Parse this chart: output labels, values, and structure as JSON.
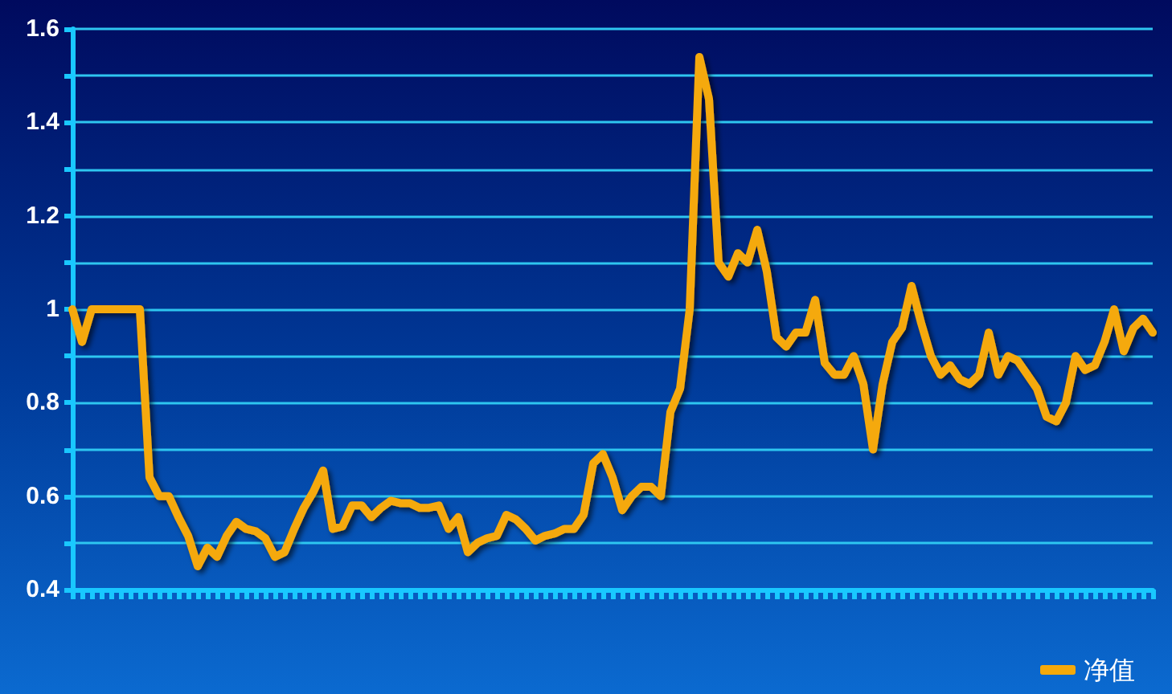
{
  "chart_data": {
    "type": "line",
    "categories": [
      null,
      null,
      null,
      null,
      null,
      null,
      null,
      null,
      null,
      null,
      null,
      null,
      null,
      null,
      null,
      null,
      null,
      null,
      null,
      null,
      null,
      null,
      null,
      null,
      null,
      null,
      null,
      null,
      null,
      null,
      null,
      null,
      null,
      null,
      null,
      null,
      null,
      null,
      null,
      null,
      null,
      null,
      null,
      null,
      null,
      null,
      null,
      null,
      null,
      null,
      null,
      null,
      null,
      null,
      null,
      null,
      null,
      null,
      null,
      null,
      null,
      null,
      null,
      null,
      null,
      null,
      null,
      null,
      null,
      null,
      null,
      null,
      null,
      null,
      null,
      null,
      null,
      null,
      null,
      null,
      null,
      null,
      null,
      null,
      null,
      null,
      null,
      null,
      null,
      null,
      null,
      null,
      null,
      null,
      null,
      null,
      null,
      null,
      null,
      null,
      null,
      null,
      null,
      null,
      null,
      null,
      null,
      null,
      null,
      null,
      null,
      null,
      null
    ],
    "series": [
      {
        "name": "净值",
        "color": "#f5a90a",
        "values": [
          1.0,
          0.93,
          1.0,
          1.0,
          1.0,
          1.0,
          1.0,
          1.0,
          0.64,
          0.6,
          0.6,
          0.555,
          0.515,
          0.45,
          0.49,
          0.47,
          0.515,
          0.545,
          0.53,
          0.525,
          0.51,
          0.47,
          0.48,
          0.53,
          0.575,
          0.61,
          0.655,
          0.53,
          0.535,
          0.58,
          0.58,
          0.555,
          0.575,
          0.59,
          0.585,
          0.585,
          0.575,
          0.575,
          0.58,
          0.53,
          0.555,
          0.48,
          0.5,
          0.51,
          0.515,
          0.56,
          0.55,
          0.53,
          0.505,
          0.515,
          0.52,
          0.53,
          0.53,
          0.56,
          0.67,
          0.69,
          0.64,
          0.57,
          0.6,
          0.62,
          0.62,
          0.6,
          0.78,
          0.83,
          1.0,
          1.54,
          1.45,
          1.1,
          1.07,
          1.12,
          1.1,
          1.17,
          1.08,
          0.94,
          0.92,
          0.95,
          0.95,
          1.02,
          0.885,
          0.86,
          0.86,
          0.9,
          0.84,
          0.7,
          0.84,
          0.93,
          0.96,
          1.05,
          0.97,
          0.9,
          0.86,
          0.88,
          0.85,
          0.84,
          0.86,
          0.95,
          0.86,
          0.9,
          0.89,
          0.86,
          0.83,
          0.77,
          0.76,
          0.8,
          0.9,
          0.87,
          0.88,
          0.93,
          1.0,
          0.91,
          0.96,
          0.98,
          0.95
        ]
      }
    ],
    "ylim": [
      0.4,
      1.6
    ],
    "yticks": [
      0.4,
      {
        "value": 0.5,
        "label": null
      },
      0.6,
      {
        "value": 0.7,
        "label": null
      },
      0.8,
      {
        "value": 0.9,
        "label": null
      },
      1,
      {
        "value": 1.1,
        "label": null
      },
      1.2,
      {
        "value": 1.3,
        "label": null
      },
      1.4,
      {
        "value": 1.5,
        "label": null
      },
      1.6
    ],
    "grid": "y",
    "legend": "bottom right",
    "marker": "none",
    "line_style": "solid"
  }
}
